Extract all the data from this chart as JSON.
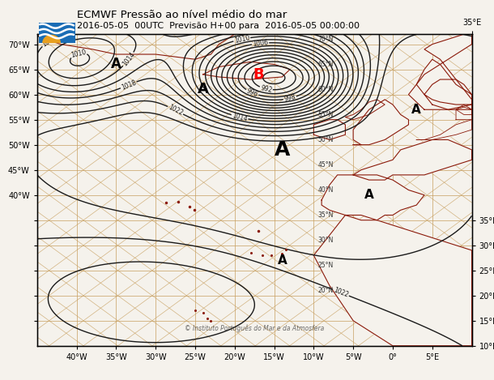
{
  "title_line1": "ECMWF Pressão ao nível médio do mar",
  "title_line2": "2016-05-05  00UTC  Previsão H+00 para  2016-05-05 00:00:00",
  "background_color": "#f5f2ec",
  "coast_color": "#8b1a0a",
  "grid_color": "#c8a060",
  "isobar_color": "#1a1a1a",
  "watermark": "© Instituto Português do Mar e da Atmosfera",
  "lon_min": -45,
  "lon_max": 10,
  "lat_min": 10,
  "lat_max": 72,
  "left_axis_ticks": [
    70,
    65,
    60,
    55,
    50,
    45,
    40
  ],
  "left_axis_labels": [
    "70°W",
    "65°W",
    "60°W",
    "55°W",
    "50°W",
    "45°W",
    "40°W"
  ],
  "bottom_axis_ticks": [
    -40,
    -35,
    -30,
    -25,
    -20,
    -15,
    -10,
    -5,
    0,
    5
  ],
  "bottom_axis_labels": [
    "40°W",
    "35°W",
    "30°W",
    "25°W",
    "20°W",
    "15°W",
    "10°W",
    "5°W",
    "0°",
    "5°E"
  ],
  "right_axis_ticks": [
    35,
    30,
    25,
    20,
    15,
    10
  ],
  "right_axis_labels": [
    "35°E",
    "30°E",
    "25°E",
    "20°E",
    "15°E",
    "10°E"
  ],
  "top_axis_ticks": [
    -45,
    -40,
    -35,
    -30,
    -25,
    -20,
    -15,
    -10,
    -5,
    0,
    5,
    10
  ],
  "top_axis_labels": [
    "",
    "",
    "",
    "",
    "",
    "",
    "",
    "",
    "",
    "",
    "",
    "35°E"
  ],
  "lat_labels_on_map": [
    {
      "lon": -8.5,
      "lat": 70.3,
      "label": "70°N"
    },
    {
      "lon": -8.5,
      "lat": 65.3,
      "label": "65°N"
    },
    {
      "lon": -8.5,
      "lat": 60.3,
      "label": "60°N"
    },
    {
      "lon": -8.5,
      "lat": 55.3,
      "label": "55°N"
    },
    {
      "lon": -8.5,
      "lat": 50.3,
      "label": "50°N"
    },
    {
      "lon": -8.5,
      "lat": 45.3,
      "label": "45°N"
    },
    {
      "lon": -8.5,
      "lat": 40.3,
      "label": "40°N"
    },
    {
      "lon": -8.5,
      "lat": 35.3,
      "label": "35°N"
    },
    {
      "lon": -8.5,
      "lat": 30.3,
      "label": "30°N"
    },
    {
      "lon": -8.5,
      "lat": 25.3,
      "label": "25°N"
    },
    {
      "lon": -8.5,
      "lat": 20.3,
      "label": "20°N"
    }
  ]
}
